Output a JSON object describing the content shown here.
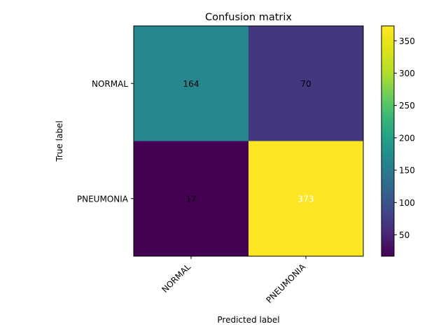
{
  "chart_data": {
    "type": "heatmap",
    "title": "Confusion matrix",
    "xlabel": "Predicted label",
    "ylabel": "True label",
    "x_categories": [
      "NORMAL",
      "PNEUMONIA"
    ],
    "y_categories": [
      "NORMAL",
      "PNEUMONIA"
    ],
    "values": [
      [
        164,
        70
      ],
      [
        17,
        373
      ]
    ],
    "colormap": "viridis",
    "color_range": [
      17,
      373
    ],
    "colorbar_ticks": [
      50,
      100,
      150,
      200,
      250,
      300,
      350
    ],
    "cell_text_colors": [
      [
        "#000000",
        "#000000"
      ],
      [
        "#000000",
        "#ffffff"
      ]
    ],
    "grid": false
  }
}
